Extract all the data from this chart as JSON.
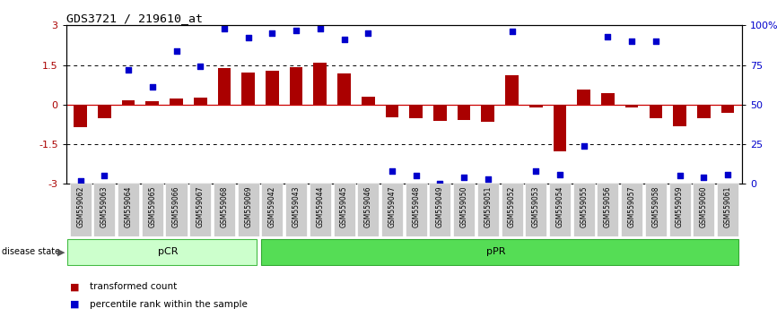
{
  "title": "GDS3721 / 219610_at",
  "samples": [
    "GSM559062",
    "GSM559063",
    "GSM559064",
    "GSM559065",
    "GSM559066",
    "GSM559067",
    "GSM559068",
    "GSM559069",
    "GSM559042",
    "GSM559043",
    "GSM559044",
    "GSM559045",
    "GSM559046",
    "GSM559047",
    "GSM559048",
    "GSM559049",
    "GSM559050",
    "GSM559051",
    "GSM559052",
    "GSM559053",
    "GSM559054",
    "GSM559055",
    "GSM559056",
    "GSM559057",
    "GSM559058",
    "GSM559059",
    "GSM559060",
    "GSM559061"
  ],
  "bar_values": [
    -0.85,
    -0.5,
    0.18,
    0.12,
    0.22,
    0.28,
    1.38,
    1.22,
    1.28,
    1.42,
    1.58,
    1.18,
    0.3,
    -0.48,
    -0.52,
    -0.62,
    -0.58,
    -0.65,
    1.12,
    -0.12,
    -1.78,
    0.58,
    0.42,
    -0.12,
    -0.5,
    -0.82,
    -0.52,
    -0.32
  ],
  "percentile_values_pct": [
    2,
    5,
    72,
    61,
    84,
    74,
    98,
    92,
    95,
    97,
    98,
    91,
    95,
    8,
    5,
    0,
    4,
    3,
    96,
    8,
    6,
    24,
    93,
    90,
    90,
    5,
    4,
    6
  ],
  "pCR_count": 8,
  "pPR_count": 20,
  "ylim": [
    -3,
    3
  ],
  "yticks_left": [
    -3,
    -1.5,
    0,
    1.5,
    3
  ],
  "yticks_right": [
    0,
    25,
    50,
    75,
    100
  ],
  "hlines": [
    -1.5,
    1.5
  ],
  "bar_color": "#AA0000",
  "dot_color": "#0000CC",
  "pCR_color": "#CCFFCC",
  "pPR_color": "#55DD55",
  "zero_line_color": "#CC0000",
  "bg_xtick": "#CCCCCC"
}
